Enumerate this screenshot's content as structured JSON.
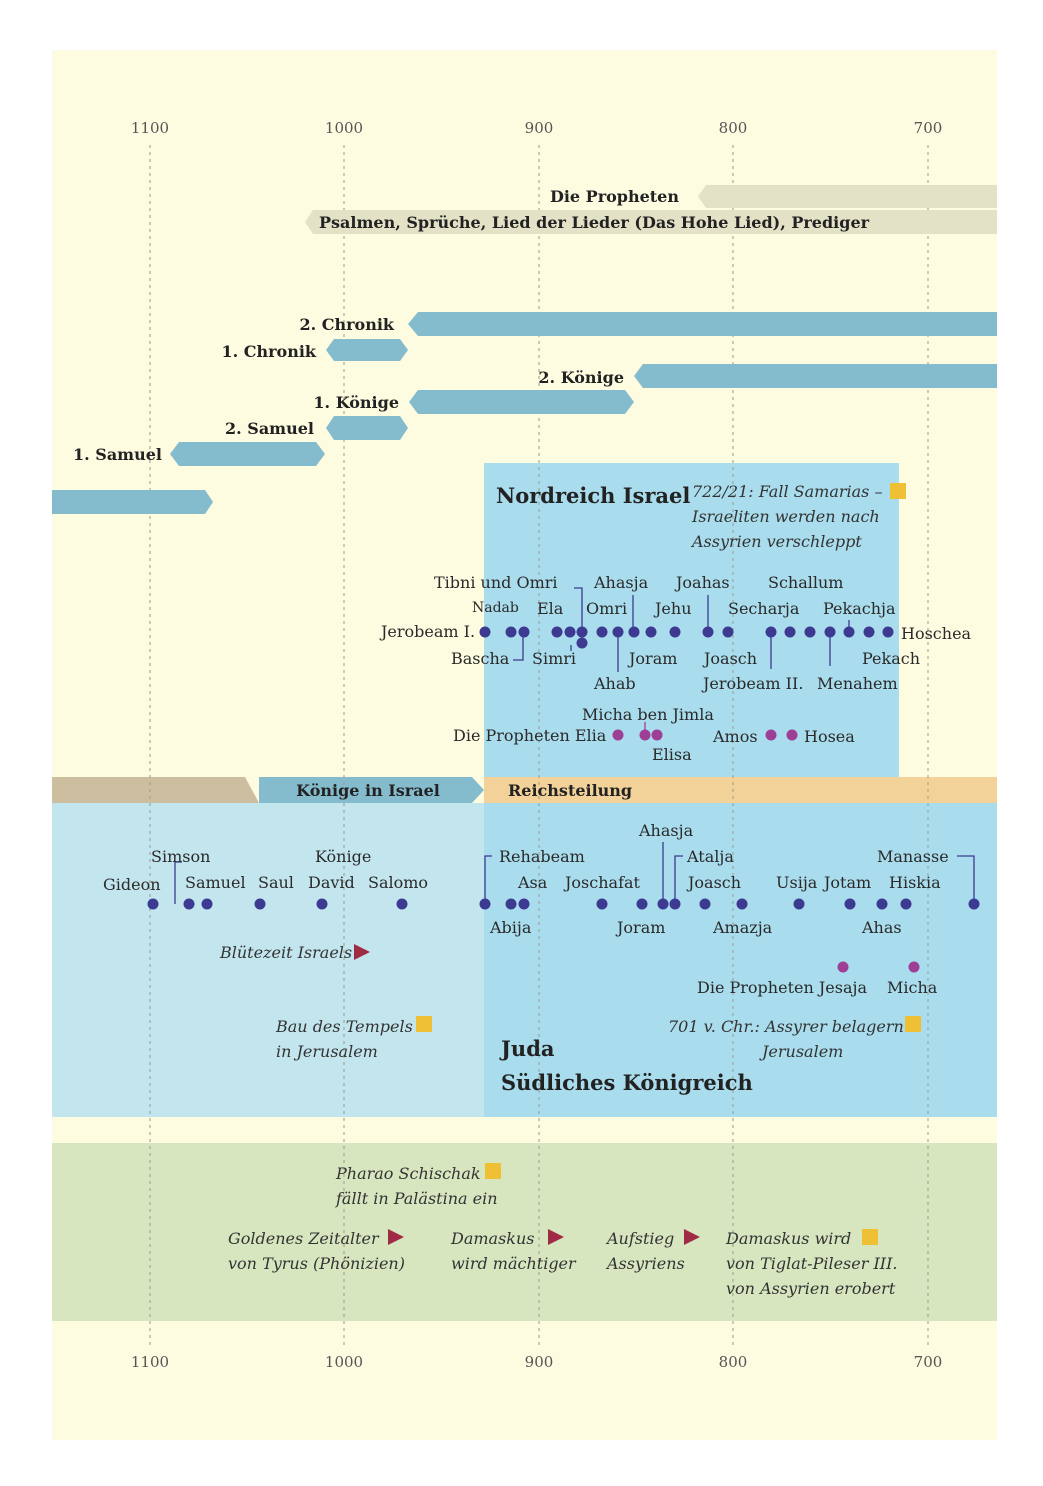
{
  "axis": {
    "top": [
      "1100",
      "1000",
      "900",
      "800",
      "700"
    ],
    "bottom": [
      "1100",
      "1000",
      "900",
      "800",
      "700"
    ]
  },
  "books": {
    "propheten": "Die Propheten",
    "psalmen": "Psalmen, Sprüche, Lied der Lieder (Das Hohe Lied), Prediger",
    "chronik2": "2. Chronik",
    "chronik1": "1. Chronik",
    "koenige2": "2. Könige",
    "koenige1": "1. Könige",
    "samuel2": "2. Samuel",
    "samuel1": "1. Samuel"
  },
  "north": {
    "title": "Nordreich Israel",
    "event": [
      "722/21: Fall Samarias –",
      "Israeliten werden nach",
      "Assyrien verschleppt"
    ],
    "kings": {
      "tibni_omri": "Tibni und Omri",
      "ahasja": "Ahasja",
      "joahas": "Joahas",
      "schallum": "Schallum",
      "nadab": "Nadab",
      "ela": "Ela",
      "omri": "Omri",
      "jehu": "Jehu",
      "secharja": "Secharja",
      "pekachja": "Pekachja",
      "jerobeam1": "Jerobeam I.",
      "hoschea": "Hoschea",
      "bascha": "Bascha",
      "simri": "Simri",
      "joram": "Joram",
      "joasch": "Joasch",
      "pekach": "Pekach",
      "ahab": "Ahab",
      "jerobeam2": "Jerobeam II.",
      "menahem": "Menahem"
    },
    "prophets": {
      "micha_ben_jimla": "Micha ben Jimla",
      "elia": "Die Propheten Elia",
      "elisa": "Elisa",
      "amos": "Amos",
      "hosea": "Hosea"
    }
  },
  "bands": {
    "koenige": "Könige in Israel",
    "reichsteilung": "Reichsteilung"
  },
  "south": {
    "title1": "Juda",
    "title2": "Südliches Königreich",
    "kings": {
      "simson": "Simson",
      "koenige": "Könige",
      "gideon": "Gideon",
      "samuel": "Samuel",
      "saul": "Saul",
      "david": "David",
      "salomo": "Salomo",
      "rehabeam": "Rehabeam",
      "asa": "Asa",
      "joschafat": "Joschafat",
      "ahasja": "Ahasja",
      "atalja": "Atalja",
      "joasch": "Joasch",
      "usija": "Usija",
      "jotam": "Jotam",
      "hiskia": "Hiskia",
      "manasse": "Manasse",
      "abija": "Abija",
      "joram": "Joram",
      "amazja": "Amazja",
      "ahas": "Ahas"
    },
    "bluetezeit": "Blütezeit Israels",
    "prophets": {
      "jesaja": "Die Propheten Jesaja",
      "micha": "Micha"
    },
    "tempel": [
      "Bau des Tempels",
      "in Jerusalem"
    ],
    "assyrer": [
      "701 v. Chr.: Assyrer belagern",
      "Jerusalem"
    ]
  },
  "world": {
    "schischak": [
      "Pharao Schischak",
      "fällt in Palästina ein"
    ],
    "tyrus": [
      "Goldenes Zeitalter",
      "von Tyrus (Phönizien)"
    ],
    "damaskus1": [
      "Damaskus",
      "wird mächtiger"
    ],
    "assyrien": [
      "Aufstieg",
      "Assyriens"
    ],
    "damaskus2": [
      "Damaskus wird",
      "von Tiglat-Pileser III.",
      "von Assyrien erobert"
    ]
  },
  "colors": {
    "page": "#fdfbe0",
    "bar": "#84bcce",
    "gray_bar": "#e3e1c6",
    "north_bg": "#a9dced",
    "juda_bg": "#a9dced",
    "pre_bg": "#c3e5ee",
    "tan": "#cdbea0",
    "orange": "#f2d298",
    "world": "#d8e6c0",
    "dot": "#3d3b91",
    "prophet_dot": "#9c3f95",
    "square": "#f0c034",
    "triangle": "#a02b44"
  }
}
